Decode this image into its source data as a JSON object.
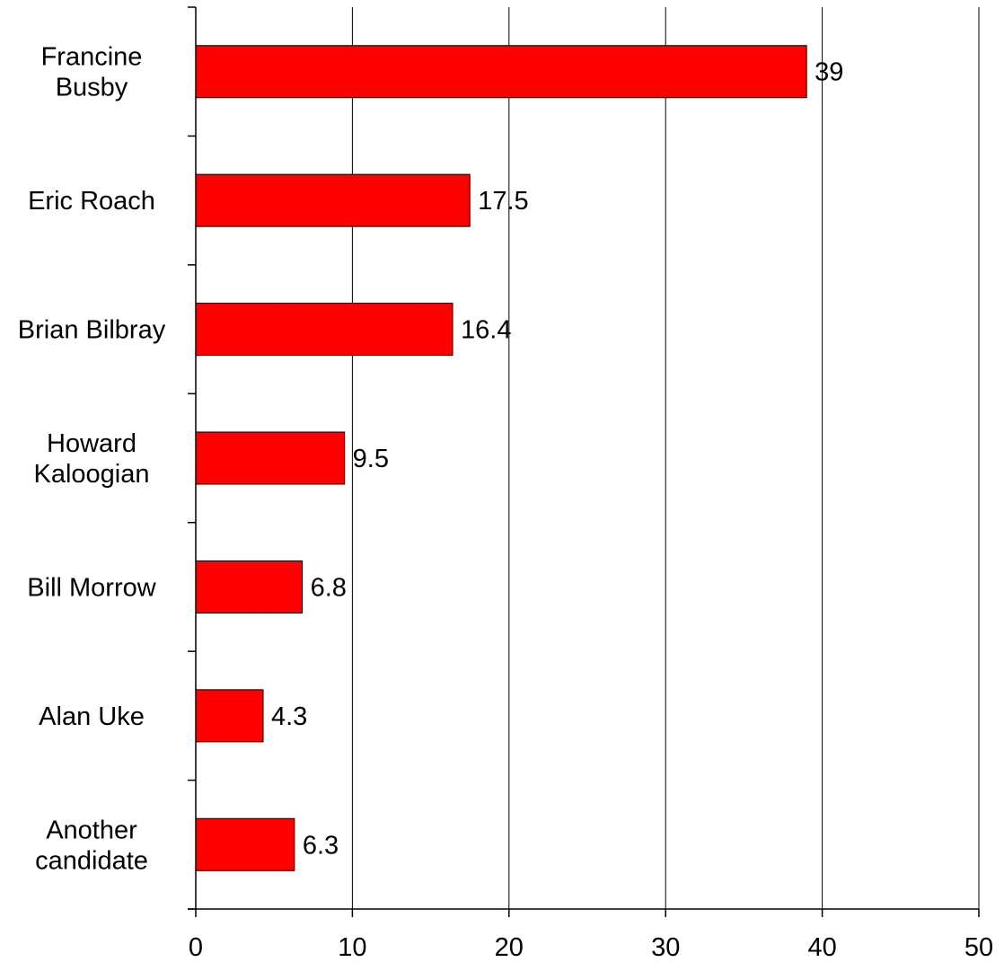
{
  "chart_data": {
    "type": "bar",
    "orientation": "horizontal",
    "categories": [
      [
        "Francine",
        "Busby"
      ],
      [
        "Eric Roach"
      ],
      [
        "Brian Bilbray"
      ],
      [
        "Howard",
        "Kaloogian"
      ],
      [
        "Bill Morrow"
      ],
      [
        "Alan Uke"
      ],
      [
        "Another",
        "candidate"
      ]
    ],
    "values": [
      39,
      17.5,
      16.4,
      9.5,
      6.8,
      4.3,
      6.3
    ],
    "value_labels": [
      "39",
      "17.5",
      "16.4",
      "9.5",
      "6.8",
      "4.3",
      "6.3"
    ],
    "x_ticks": [
      "0",
      "10",
      "20",
      "30",
      "40",
      "50"
    ],
    "xlim": [
      0,
      50
    ],
    "grid": "vertical",
    "bar_color": "#FF0000",
    "bar_border_color": "#000000",
    "grid_color": "#000000"
  }
}
